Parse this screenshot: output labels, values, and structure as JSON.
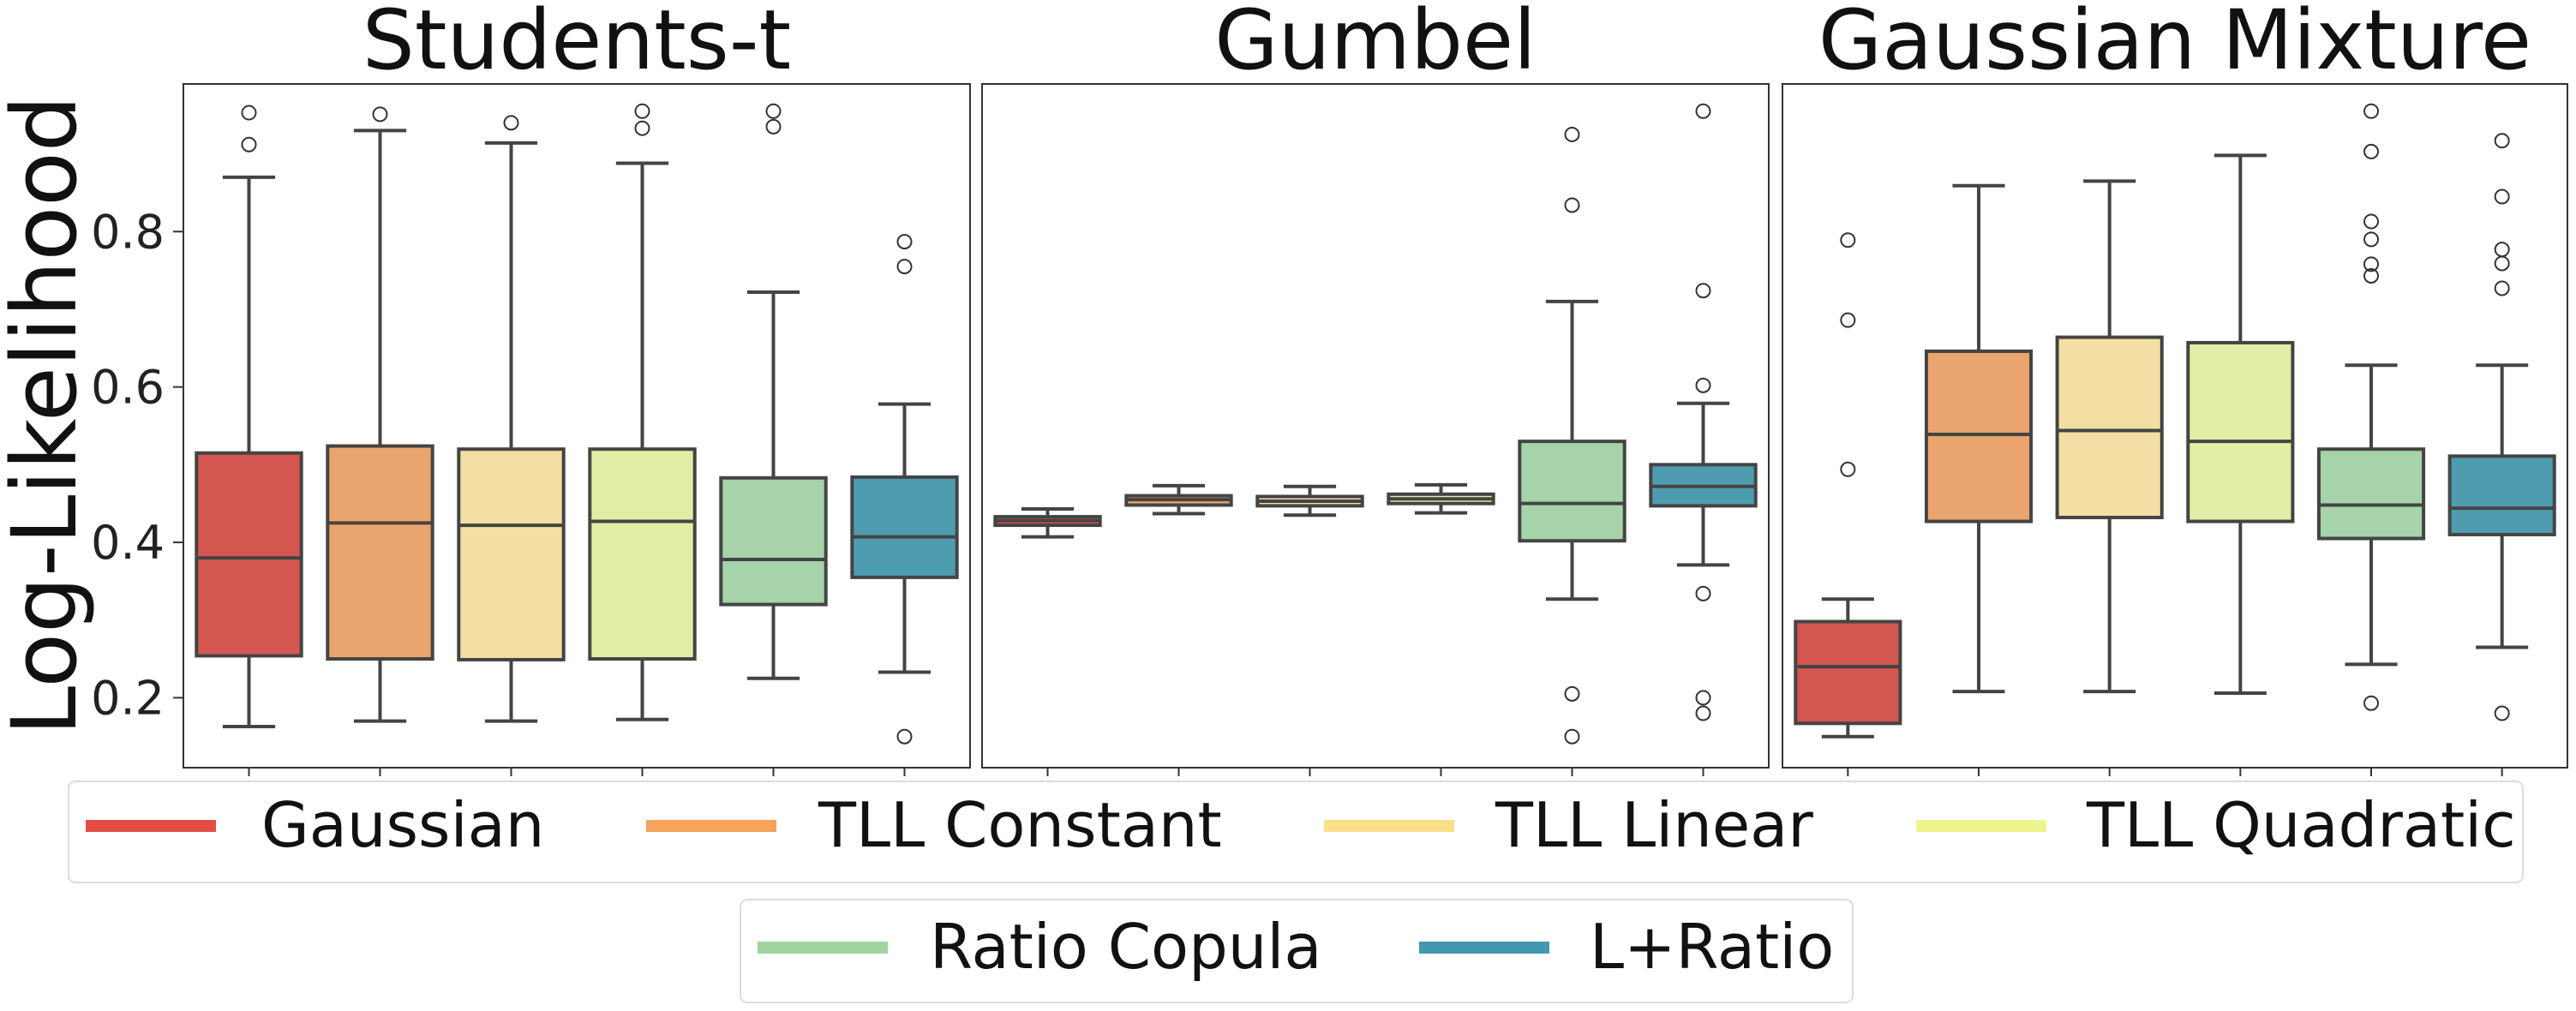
{
  "chart_data": {
    "type": "box",
    "ylabel": "Log-Likelihood",
    "ylim": [
      0.11,
      0.99
    ],
    "yticks": [
      0.2,
      0.4,
      0.6,
      0.8
    ],
    "ytick_labels": [
      "0.2",
      "0.4",
      "0.6",
      "0.8"
    ],
    "series_names": [
      "Gaussian",
      "TLL Constant",
      "TLL Linear",
      "TLL Quadratic",
      "Ratio Copula",
      "L+Ratio"
    ],
    "colors": {
      "Gaussian": "#d45650",
      "TLL Constant": "#eaa46d",
      "TLL Linear": "#f3dfa4",
      "TLL Quadratic": "#e1efa6",
      "Ratio Copula": "#a6d3aa",
      "L+Ratio": "#4e9cb0"
    },
    "legend_colors": {
      "Gaussian": "#e24d45",
      "TLL Constant": "#f5a35d",
      "TLL Linear": "#f9e088",
      "TLL Quadratic": "#eef58f",
      "Ratio Copula": "#9fd49e",
      "L+Ratio": "#4298ae"
    },
    "legend_placement": "bottom",
    "panels": [
      {
        "title": "Students-t",
        "boxes": [
          {
            "name": "Gaussian",
            "whisker_low": 0.163,
            "q1": 0.254,
            "median": 0.38,
            "q3": 0.515,
            "whisker_high": 0.87,
            "outliers": [
              0.912,
              0.953
            ]
          },
          {
            "name": "TLL Constant",
            "whisker_low": 0.17,
            "q1": 0.25,
            "median": 0.425,
            "q3": 0.524,
            "whisker_high": 0.93,
            "outliers": [
              0.951
            ]
          },
          {
            "name": "TLL Linear",
            "whisker_low": 0.17,
            "q1": 0.249,
            "median": 0.422,
            "q3": 0.52,
            "whisker_high": 0.914,
            "outliers": [
              0.94
            ]
          },
          {
            "name": "TLL Quadratic",
            "whisker_low": 0.172,
            "q1": 0.25,
            "median": 0.427,
            "q3": 0.52,
            "whisker_high": 0.888,
            "outliers": [
              0.933,
              0.955
            ]
          },
          {
            "name": "Ratio Copula",
            "whisker_low": 0.225,
            "q1": 0.32,
            "median": 0.378,
            "q3": 0.483,
            "whisker_high": 0.722,
            "outliers": [
              0.935,
              0.955
            ]
          },
          {
            "name": "L+Ratio",
            "whisker_low": 0.233,
            "q1": 0.355,
            "median": 0.407,
            "q3": 0.484,
            "whisker_high": 0.578,
            "outliers": [
              0.15,
              0.755,
              0.787
            ]
          }
        ]
      },
      {
        "title": "Gumbel",
        "boxes": [
          {
            "name": "Gaussian",
            "whisker_low": 0.407,
            "q1": 0.422,
            "median": 0.428,
            "q3": 0.433,
            "whisker_high": 0.443,
            "outliers": []
          },
          {
            "name": "TLL Constant",
            "whisker_low": 0.437,
            "q1": 0.448,
            "median": 0.455,
            "q3": 0.46,
            "whisker_high": 0.473,
            "outliers": []
          },
          {
            "name": "TLL Linear",
            "whisker_low": 0.435,
            "q1": 0.447,
            "median": 0.453,
            "q3": 0.459,
            "whisker_high": 0.472,
            "outliers": []
          },
          {
            "name": "TLL Quadratic",
            "whisker_low": 0.438,
            "q1": 0.45,
            "median": 0.456,
            "q3": 0.462,
            "whisker_high": 0.474,
            "outliers": []
          },
          {
            "name": "Ratio Copula",
            "whisker_low": 0.327,
            "q1": 0.402,
            "median": 0.45,
            "q3": 0.53,
            "whisker_high": 0.71,
            "outliers": [
              0.15,
              0.205,
              0.834,
              0.925
            ]
          },
          {
            "name": "L+Ratio",
            "whisker_low": 0.371,
            "q1": 0.447,
            "median": 0.472,
            "q3": 0.5,
            "whisker_high": 0.579,
            "outliers": [
              0.18,
              0.2,
              0.334,
              0.602,
              0.724,
              0.955
            ]
          }
        ]
      },
      {
        "title": "Gaussian Mixture",
        "boxes": [
          {
            "name": "Gaussian",
            "whisker_low": 0.15,
            "q1": 0.167,
            "median": 0.24,
            "q3": 0.298,
            "whisker_high": 0.327,
            "outliers": [
              0.494,
              0.686,
              0.789
            ]
          },
          {
            "name": "TLL Constant",
            "whisker_low": 0.208,
            "q1": 0.427,
            "median": 0.539,
            "q3": 0.646,
            "whisker_high": 0.859,
            "outliers": []
          },
          {
            "name": "TLL Linear",
            "whisker_low": 0.208,
            "q1": 0.432,
            "median": 0.544,
            "q3": 0.664,
            "whisker_high": 0.865,
            "outliers": []
          },
          {
            "name": "TLL Quadratic",
            "whisker_low": 0.206,
            "q1": 0.427,
            "median": 0.53,
            "q3": 0.657,
            "whisker_high": 0.898,
            "outliers": []
          },
          {
            "name": "Ratio Copula",
            "whisker_low": 0.243,
            "q1": 0.405,
            "median": 0.448,
            "q3": 0.52,
            "whisker_high": 0.628,
            "outliers": [
              0.193,
              0.743,
              0.758,
              0.79,
              0.813,
              0.903,
              0.955
            ]
          },
          {
            "name": "L+Ratio",
            "whisker_low": 0.265,
            "q1": 0.41,
            "median": 0.444,
            "q3": 0.511,
            "whisker_high": 0.628,
            "outliers": [
              0.18,
              0.727,
              0.759,
              0.777,
              0.845,
              0.917
            ]
          }
        ]
      }
    ]
  }
}
